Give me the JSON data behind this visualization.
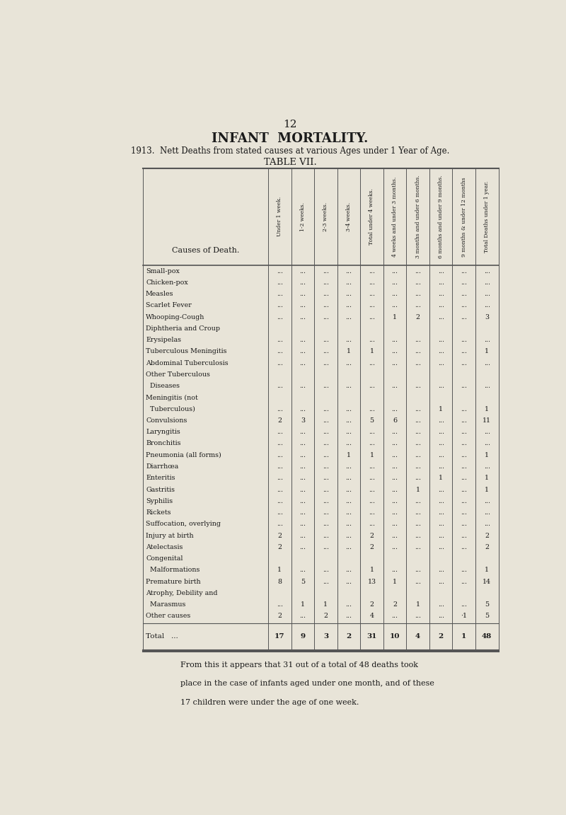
{
  "page_number": "12",
  "title": "INFANT  MORTALITY.",
  "subtitle": "1913.  Nett Deaths from stated causes at various Ages under 1 Year of Age.",
  "table_title": "TABLE VII.",
  "col_headers": [
    "Under 1 week.",
    "1-2 weeks.",
    "2-3 weeks.",
    "3-4 weeks.",
    "Total under 4 weeks.",
    "4 weeks and under 3 months.",
    "3 months and under 6 months.",
    "6 months and under 9 months.",
    "9 months & under 12 months",
    "Total Deaths under 1 year."
  ],
  "row_label_header": "Causes of Death.",
  "rows": [
    {
      "label": "Small-pox",
      "indent": false,
      "values": [
        "...",
        "...",
        "...",
        "...",
        "...",
        "...",
        "...",
        "...",
        "...",
        "..."
      ]
    },
    {
      "label": "Chicken-pox",
      "indent": false,
      "values": [
        "...",
        "...",
        "...",
        "...",
        "...",
        "...",
        "...",
        "...",
        "...",
        "..."
      ]
    },
    {
      "label": "Measles",
      "indent": false,
      "values": [
        "...",
        "...",
        "...",
        "...",
        "...",
        "...",
        "...",
        "...",
        "...",
        "..."
      ]
    },
    {
      "label": "Scarlet Fever",
      "indent": false,
      "values": [
        "...",
        "...",
        "...",
        "...",
        "...",
        "...",
        "...",
        "...",
        "...",
        "..."
      ]
    },
    {
      "label": "Whooping-Cough",
      "indent": false,
      "values": [
        "...",
        "...",
        "...",
        "...",
        "...",
        "1",
        "2",
        "...",
        "...",
        "3"
      ]
    },
    {
      "label": "Diphtheria and Croup",
      "indent": false,
      "values": [
        "",
        "",
        "",
        "",
        "",
        "",
        "",
        "",
        "",
        ""
      ]
    },
    {
      "label": "Erysipelas",
      "indent": false,
      "values": [
        "...",
        "...",
        "...",
        "...",
        "...",
        "...",
        "...",
        "...",
        "...",
        "..."
      ]
    },
    {
      "label": "Tuberculous Meningitis",
      "indent": false,
      "values": [
        "...",
        "...",
        "...",
        "1",
        "1",
        "...",
        "...",
        "...",
        "...",
        "1"
      ]
    },
    {
      "label": "Abdominal Tuberculosis",
      "indent": false,
      "values": [
        "...",
        "...",
        "...",
        "...",
        "...",
        "...",
        "...",
        "...",
        "...",
        "..."
      ]
    },
    {
      "label": "Other Tuberculous",
      "indent": false,
      "values": [
        "",
        "",
        "",
        "",
        "",
        "",
        "",
        "",
        "",
        ""
      ]
    },
    {
      "label": "  Diseases",
      "indent": true,
      "values": [
        "...",
        "...",
        "...",
        "...",
        "...",
        "...",
        "...",
        "...",
        "...",
        "..."
      ]
    },
    {
      "label": "Meningitis (not",
      "indent": false,
      "values": [
        "",
        "",
        "",
        "",
        "",
        "",
        "",
        "",
        "",
        ""
      ]
    },
    {
      "label": "  Tuberculous)",
      "indent": true,
      "values": [
        "...",
        "...",
        "...",
        "...",
        "...",
        "...",
        "...",
        "1",
        "...",
        "1"
      ]
    },
    {
      "label": "Convulsions",
      "indent": false,
      "values": [
        "2",
        "3",
        "...",
        "...",
        "5",
        "6",
        "...",
        "...",
        "...",
        "11"
      ]
    },
    {
      "label": "Laryngitis",
      "indent": false,
      "values": [
        "...",
        "...",
        "...",
        "...",
        "...",
        "...",
        "...",
        "...",
        "...",
        "..."
      ]
    },
    {
      "label": "Bronchitis",
      "indent": false,
      "values": [
        "...",
        "...",
        "...",
        "...",
        "...",
        "...",
        "...",
        "...",
        "...",
        "..."
      ]
    },
    {
      "label": "Pneumonia (all forms)",
      "indent": false,
      "values": [
        "...",
        "...",
        "...",
        "1",
        "1",
        "...",
        "...",
        "...",
        "...",
        "1"
      ]
    },
    {
      "label": "Diarrhœa",
      "indent": false,
      "values": [
        "...",
        "...",
        "...",
        "...",
        "...",
        "...",
        "...",
        "...",
        "...",
        "..."
      ]
    },
    {
      "label": "Enteritis",
      "indent": false,
      "values": [
        "...",
        "...",
        "...",
        "...",
        "...",
        "...",
        "...",
        "1",
        "...",
        "1"
      ]
    },
    {
      "label": "Gastritis",
      "indent": false,
      "values": [
        "...",
        "...",
        "...",
        "...",
        "...",
        "...",
        "1",
        "...",
        "...",
        "1"
      ]
    },
    {
      "label": "Syphilis",
      "indent": false,
      "values": [
        "...",
        "...",
        "...",
        "...",
        "...",
        "...",
        "...",
        "...",
        "...",
        "..."
      ]
    },
    {
      "label": "Rickets",
      "indent": false,
      "values": [
        "...",
        "...",
        "...",
        "...",
        "...",
        "...",
        "...",
        "...",
        "...",
        "..."
      ]
    },
    {
      "label": "Suffocation, overlying",
      "indent": false,
      "values": [
        "...",
        "...",
        "...",
        "...",
        "...",
        "...",
        "...",
        "...",
        "...",
        "..."
      ]
    },
    {
      "label": "Injury at birth",
      "indent": false,
      "values": [
        "2",
        "...",
        "...",
        "...",
        "2",
        "...",
        "...",
        "...",
        "...",
        "2"
      ]
    },
    {
      "label": "Atelectasis",
      "indent": false,
      "values": [
        "2",
        "...",
        "...",
        "...",
        "2",
        "...",
        "...",
        "...",
        "...",
        "2"
      ]
    },
    {
      "label": "Congenital",
      "indent": false,
      "values": [
        "",
        "",
        "",
        "",
        "",
        "",
        "",
        "",
        "",
        ""
      ]
    },
    {
      "label": "  Malformations",
      "indent": true,
      "values": [
        "1",
        "...",
        "...",
        "...",
        "1",
        "...",
        "...",
        "...",
        "...",
        "1"
      ]
    },
    {
      "label": "Premature birth",
      "indent": false,
      "values": [
        "8",
        "5",
        "...",
        "...",
        "13",
        "1",
        "...",
        "...",
        "...",
        "14"
      ]
    },
    {
      "label": "Atrophy, Debility and",
      "indent": false,
      "values": [
        "",
        "",
        "",
        "",
        "",
        "",
        "",
        "",
        "",
        ""
      ]
    },
    {
      "label": "  Marasmus",
      "indent": true,
      "values": [
        "...",
        "1",
        "1",
        "...",
        "2",
        "2",
        "1",
        "...",
        "...",
        "5"
      ]
    },
    {
      "label": "Other causes",
      "indent": false,
      "values": [
        "2",
        "...",
        "2",
        "...",
        "4",
        "...",
        "...",
        "...",
        "·1",
        "5"
      ]
    }
  ],
  "total_row": {
    "label": "Total",
    "values": [
      "17",
      "9",
      "3",
      "2",
      "31",
      "10",
      "4",
      "2",
      "1",
      "48"
    ]
  },
  "footer_text": "From this it appears that 31 out of a total of 48 deaths took\nplace in the case of infants aged under one month, and of these\n17 children were under the age of one week.",
  "bg_color": "#e8e4d8",
  "text_color": "#1a1a1a",
  "table_line_color": "#555555"
}
